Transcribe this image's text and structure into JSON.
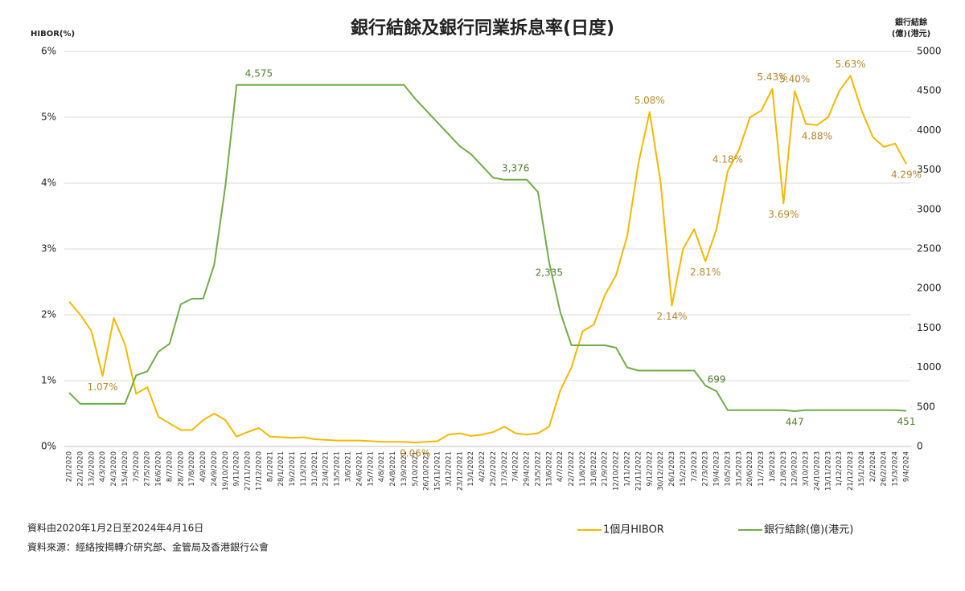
{
  "chart_data": {
    "type": "line",
    "title": "銀行結餘及銀行同業拆息率(日度)",
    "y_label": "HIBOR(%)",
    "y2_label": [
      "銀行結餘",
      "(億)(港元)"
    ],
    "notes": [
      "資料由2020年1月2日至2024年4月16日",
      "資料來源：經絡按揭轉介研究部、金管局及香港銀行公會"
    ],
    "categories": [
      "2/1/2020",
      "22/1/2020",
      "13/2/2020",
      "4/3/2020",
      "24/3/2020",
      "15/4/2020",
      "7/5/2020",
      "27/5/2020",
      "16/6/2020",
      "8/7/2020",
      "28/7/2020",
      "17/8/2020",
      "4/9/2020",
      "24/9/2020",
      "19/10/2020",
      "9/11/2020",
      "27/11/2020",
      "17/12/2020",
      "8/1/2021",
      "28/1/2021",
      "19/2/2021",
      "11/3/2021",
      "31/3/2021",
      "23/4/2021",
      "13/5/2021",
      "3/6/2021",
      "24/6/2021",
      "15/7/2021",
      "4/8/2021",
      "24/8/2021",
      "13/9/2021",
      "5/10/2021",
      "26/10/2021",
      "15/11/2021",
      "3/12/2021",
      "23/12/2021",
      "13/1/2022",
      "4/2/2022",
      "25/2/2022",
      "17/3/2022",
      "7/4/2022",
      "29/4/2022",
      "23/5/2022",
      "13/6/2022",
      "4/7/2022",
      "22/7/2022",
      "11/8/2022",
      "31/8/2022",
      "21/9/2022",
      "12/10/2022",
      "1/11/2022",
      "21/11/2022",
      "9/12/2022",
      "30/12/2022",
      "26/1/2023",
      "15/2/2023",
      "7/3/2023",
      "27/3/2023",
      "19/4/2023",
      "10/5/2023",
      "31/5/2023",
      "20/6/2023",
      "11/7/2023",
      "1/8/2023",
      "21/8/2023",
      "12/9/2023",
      "3/10/2023",
      "24/10/2023",
      "13/11/2023",
      "1/12/2023",
      "21/12/2023",
      "15/1/2024",
      "2/2/2024",
      "26/2/2024",
      "15/3/2024",
      "9/4/2024"
    ],
    "series": [
      {
        "name": "1個月HIBOR",
        "color": "#f5b800",
        "label_color": "#b8862b",
        "values": [
          2.2,
          2.0,
          1.75,
          1.07,
          1.95,
          1.55,
          0.8,
          0.9,
          0.45,
          0.35,
          0.25,
          0.25,
          0.4,
          0.5,
          0.4,
          0.15,
          0.22,
          0.28,
          0.15,
          0.14,
          0.13,
          0.14,
          0.11,
          0.1,
          0.09,
          0.09,
          0.09,
          0.08,
          0.07,
          0.07,
          0.07,
          0.06,
          0.07,
          0.08,
          0.18,
          0.2,
          0.16,
          0.18,
          0.22,
          0.3,
          0.2,
          0.18,
          0.2,
          0.3,
          0.85,
          1.2,
          1.75,
          1.85,
          2.3,
          2.6,
          3.2,
          4.3,
          5.08,
          4.0,
          2.14,
          3.0,
          3.3,
          2.81,
          3.3,
          4.18,
          4.5,
          5.0,
          5.1,
          5.43,
          3.69,
          5.4,
          4.9,
          4.88,
          5.0,
          5.4,
          5.63,
          5.1,
          4.7,
          4.55,
          4.6,
          4.29
        ],
        "value_labels": [
          null,
          null,
          null,
          "1.07%",
          null,
          null,
          null,
          null,
          null,
          null,
          null,
          null,
          null,
          null,
          null,
          null,
          null,
          null,
          null,
          null,
          null,
          null,
          null,
          null,
          null,
          null,
          null,
          null,
          null,
          null,
          null,
          "0.06%",
          null,
          null,
          null,
          null,
          null,
          null,
          null,
          null,
          null,
          null,
          null,
          null,
          null,
          null,
          null,
          null,
          null,
          null,
          null,
          null,
          "5.08%",
          null,
          "2.14%",
          null,
          null,
          "2.81%",
          null,
          "4.18%",
          null,
          null,
          null,
          "5.43%",
          "3.69%",
          "5.40%",
          null,
          "4.88%",
          null,
          null,
          "5.63%",
          null,
          null,
          null,
          null,
          "4.29%"
        ]
      },
      {
        "name": "銀行結餘(億)(港元)",
        "color": "#70ad47",
        "label_color": "#4f7f30",
        "axis": "y2",
        "values": [
          680,
          540,
          540,
          540,
          540,
          540,
          900,
          950,
          1200,
          1300,
          1800,
          1870,
          1870,
          2300,
          3300,
          4575,
          4575,
          4575,
          4575,
          4575,
          4575,
          4575,
          4575,
          4575,
          4575,
          4575,
          4575,
          4575,
          4575,
          4575,
          4575,
          4400,
          4250,
          4100,
          3950,
          3800,
          3700,
          3550,
          3400,
          3376,
          3376,
          3376,
          3220,
          2335,
          1700,
          1280,
          1280,
          1280,
          1280,
          1250,
          1000,
          960,
          960,
          960,
          960,
          960,
          960,
          770,
          699,
          460,
          460,
          460,
          460,
          460,
          460,
          447,
          460,
          460,
          460,
          460,
          460,
          460,
          460,
          460,
          460,
          451
        ],
        "value_labels": [
          null,
          null,
          null,
          null,
          null,
          null,
          null,
          null,
          null,
          null,
          null,
          null,
          null,
          null,
          null,
          null,
          null,
          "4,575",
          null,
          null,
          null,
          null,
          null,
          null,
          null,
          null,
          null,
          null,
          null,
          null,
          null,
          null,
          null,
          null,
          null,
          null,
          null,
          null,
          null,
          null,
          "3,376",
          null,
          null,
          "2,335",
          null,
          null,
          null,
          null,
          null,
          null,
          null,
          null,
          null,
          null,
          null,
          null,
          null,
          null,
          "699",
          null,
          null,
          null,
          null,
          null,
          null,
          "447",
          null,
          null,
          null,
          null,
          null,
          null,
          null,
          null,
          null,
          "451"
        ]
      }
    ],
    "ylim": [
      0,
      6
    ],
    "yticks": [
      {
        "value": 0,
        "label": "0%"
      },
      {
        "value": 1,
        "label": "1%"
      },
      {
        "value": 2,
        "label": "2%"
      },
      {
        "value": 3,
        "label": "3%"
      },
      {
        "value": 4,
        "label": "4%"
      },
      {
        "value": 5,
        "label": "5%"
      },
      {
        "value": 6,
        "label": "6%"
      }
    ],
    "y2lim": [
      0,
      5000
    ],
    "y2ticks": [
      0,
      500,
      1000,
      1500,
      2000,
      2500,
      3000,
      3500,
      4000,
      4500,
      5000
    ],
    "grid": true
  }
}
